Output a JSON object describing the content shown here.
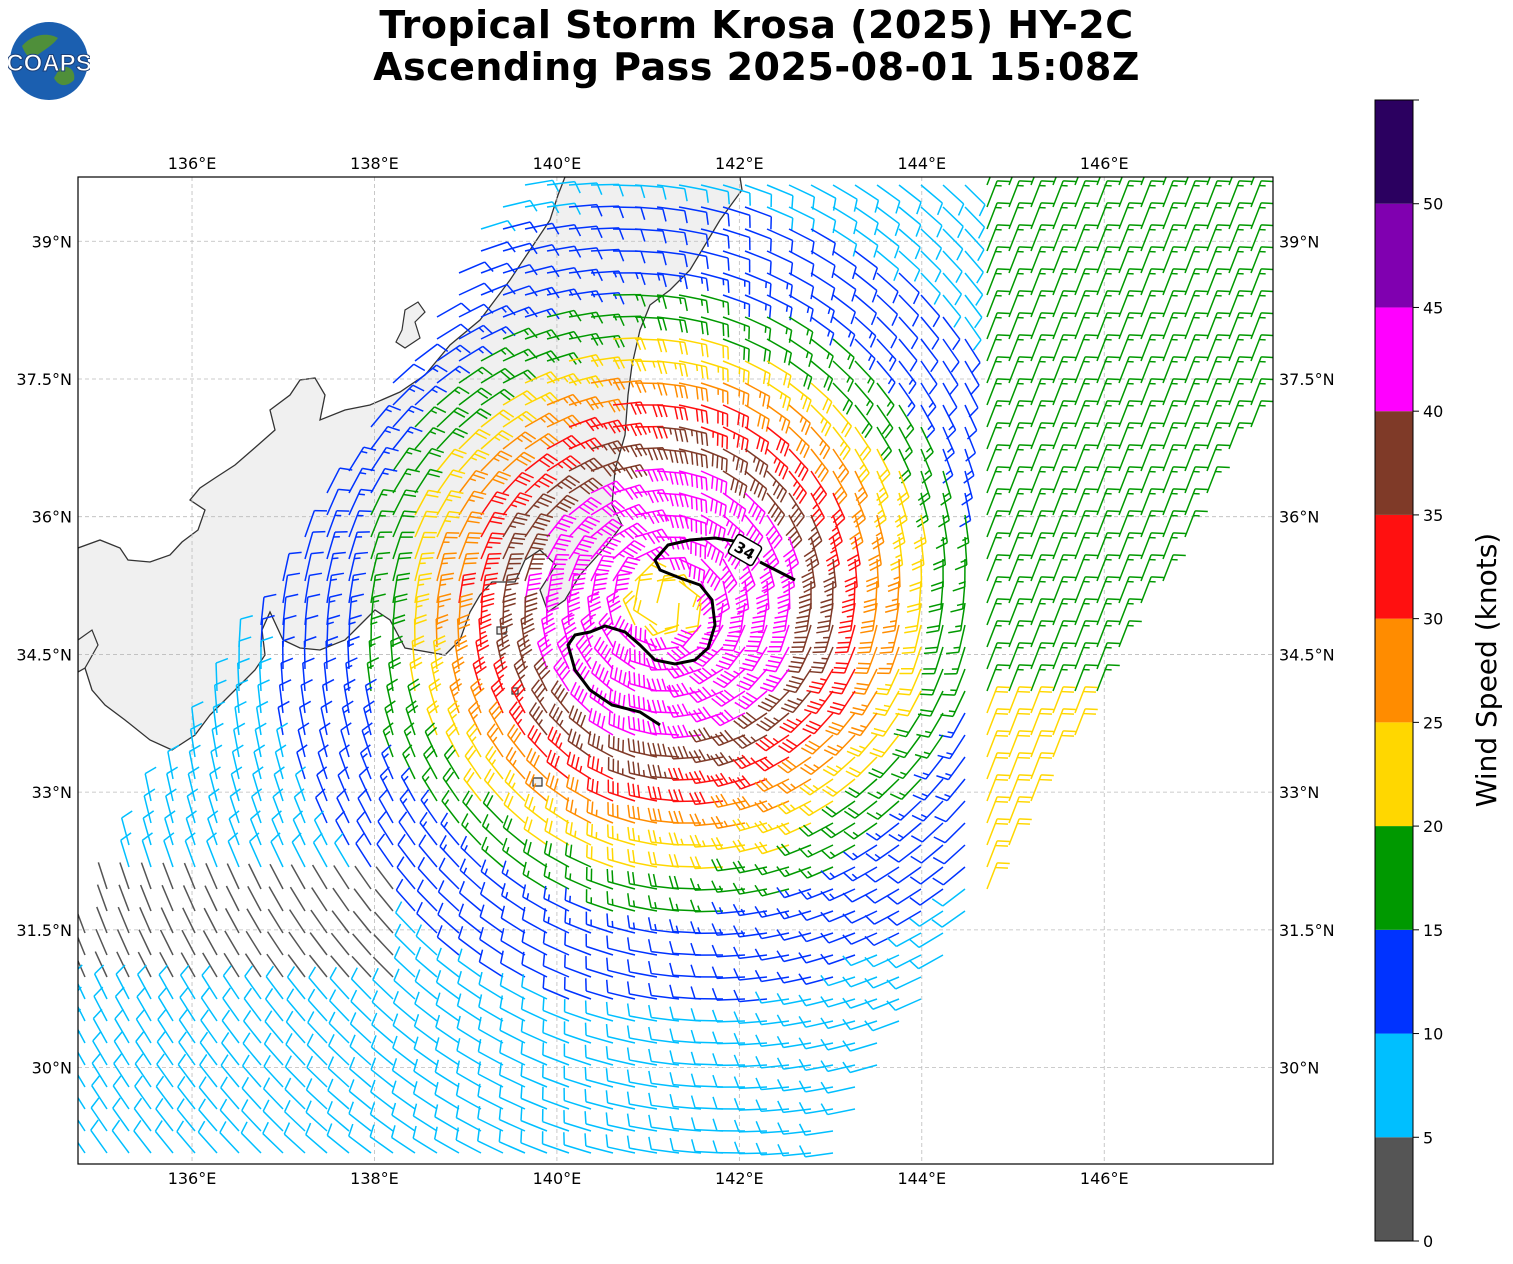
{
  "title": {
    "line1": "Tropical Storm Krosa (2025) HY-2C",
    "line2": "Ascending Pass 2025-08-01 15:08Z"
  },
  "logo": {
    "text": "COAPS",
    "icon": "globe-icon"
  },
  "map": {
    "lon_range": [
      134.75,
      147.85
    ],
    "lat_range": [
      28.95,
      39.7
    ],
    "lon_ticks": [
      "136°E",
      "138°E",
      "140°E",
      "142°E",
      "144°E",
      "146°E"
    ],
    "lon_tick_values": [
      136,
      138,
      140,
      142,
      144,
      146
    ],
    "lat_ticks": [
      "39°N",
      "37.5°N",
      "36°N",
      "34.5°N",
      "33°N",
      "31.5°N",
      "30°N"
    ],
    "lat_tick_values": [
      39,
      37.5,
      36,
      34.5,
      33,
      31.5,
      30
    ],
    "contour_label": "34",
    "gridlines": true,
    "colors": {
      "land": "#f2f2f2",
      "coast": "#333333",
      "grid": "#bbbbbb",
      "contour": "#000000"
    }
  },
  "colorbar": {
    "title": "Wind Speed (knots)",
    "tick_labels": [
      "0",
      "5",
      "10",
      "15",
      "20",
      "25",
      "30",
      "35",
      "40",
      "45",
      "50"
    ],
    "bins": [
      {
        "range": [
          0,
          5
        ],
        "color": "#555555"
      },
      {
        "range": [
          5,
          10
        ],
        "color": "#00bfff"
      },
      {
        "range": [
          10,
          15
        ],
        "color": "#0033ff"
      },
      {
        "range": [
          15,
          20
        ],
        "color": "#009900"
      },
      {
        "range": [
          20,
          25
        ],
        "color": "#ffd700"
      },
      {
        "range": [
          25,
          30
        ],
        "color": "#ff8c00"
      },
      {
        "range": [
          30,
          35
        ],
        "color": "#ff1010"
      },
      {
        "range": [
          35,
          40
        ],
        "color": "#7f3a28"
      },
      {
        "range": [
          40,
          45
        ],
        "color": "#ff00ff"
      },
      {
        "range": [
          45,
          50
        ],
        "color": "#8000b0"
      },
      {
        "range": [
          50,
          55
        ],
        "color": "#2b0060"
      }
    ]
  },
  "storm": {
    "center_lon": 141.2,
    "center_lat": 35.05,
    "contour_kt": 34
  }
}
